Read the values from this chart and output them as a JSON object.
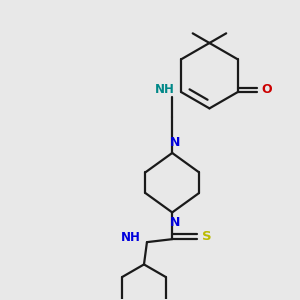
{
  "background_color": "#e8e8e8",
  "line_color": "#1a1a1a",
  "nitrogen_color": "#0000dd",
  "oxygen_color": "#cc0000",
  "sulfur_color": "#bbbb00",
  "nh_color": "#008888",
  "line_width": 1.6,
  "figsize": [
    3.0,
    3.0
  ],
  "dpi": 100,
  "xlim": [
    0,
    10
  ],
  "ylim": [
    0,
    10
  ]
}
